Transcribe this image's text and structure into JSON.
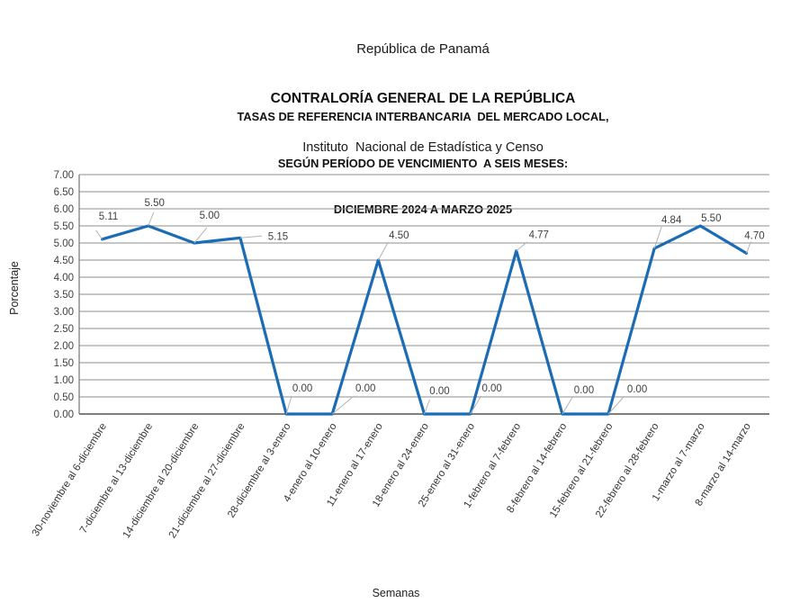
{
  "header": {
    "line1": "República de Panamá",
    "line2": "CONTRALORÍA GENERAL DE LA REPÚBLICA",
    "line3": "Instituto  Nacional de Estadística y Censo"
  },
  "chart_title": {
    "line1": "TASAS DE REFERENCIA INTERBANCARIA  DEL MERCADO LOCAL,",
    "line2": "SEGÚN PERÍODO DE VENCIMIENTO  A SEIS MESES:",
    "line3": "DICIEMBRE 2024 A MARZO 2025"
  },
  "chart_data": {
    "type": "line",
    "title": "TASAS DE REFERENCIA INTERBANCARIA DEL MERCADO LOCAL, SEGÚN PERÍODO DE VENCIMIENTO A SEIS MESES: DICIEMBRE 2024 A MARZO 2025",
    "xlabel": "Semanas",
    "ylabel": "Porcentaje",
    "ylim": [
      0,
      7
    ],
    "ytick_step": 0.5,
    "grid": true,
    "legend_position": "none",
    "line_color": "#1b6cb4",
    "gridline_color": "#8c8c8c",
    "axis_color": "#7f7f7f",
    "leader_color": "#b3b3b3",
    "categories": [
      "30-noviembre al 6-diciembre",
      "7-diciembre al 13-diciembre",
      "14-diciembre al 20-diciembre",
      "21-diciembre al 27-diciembre",
      "28-diciembre al 3-enero",
      "4-enero al 10-enero",
      "11-enero al 17-enero",
      "18-enero al 24-enero",
      "25-enero al 31-enero",
      "1-febrero al 7-febrero",
      "8-febrero al 14-febrero",
      "15-febrero al 21-febrero",
      "22-febrero al 28-febrero",
      "1-marzo al 7-marzo",
      "8-marzo al 14-marzo"
    ],
    "values": [
      5.11,
      5.5,
      5.0,
      5.15,
      0.0,
      0.0,
      4.5,
      0.0,
      0.0,
      4.77,
      0.0,
      0.0,
      4.84,
      5.5,
      4.7
    ],
    "data_labels": [
      "5.11",
      "5.50",
      "5.00",
      "5.15",
      "0.00",
      "0.00",
      "4.50",
      "0.00",
      "0.00",
      "4.77",
      "0.00",
      "0.00",
      "4.84",
      "5.50",
      "4.70"
    ]
  }
}
